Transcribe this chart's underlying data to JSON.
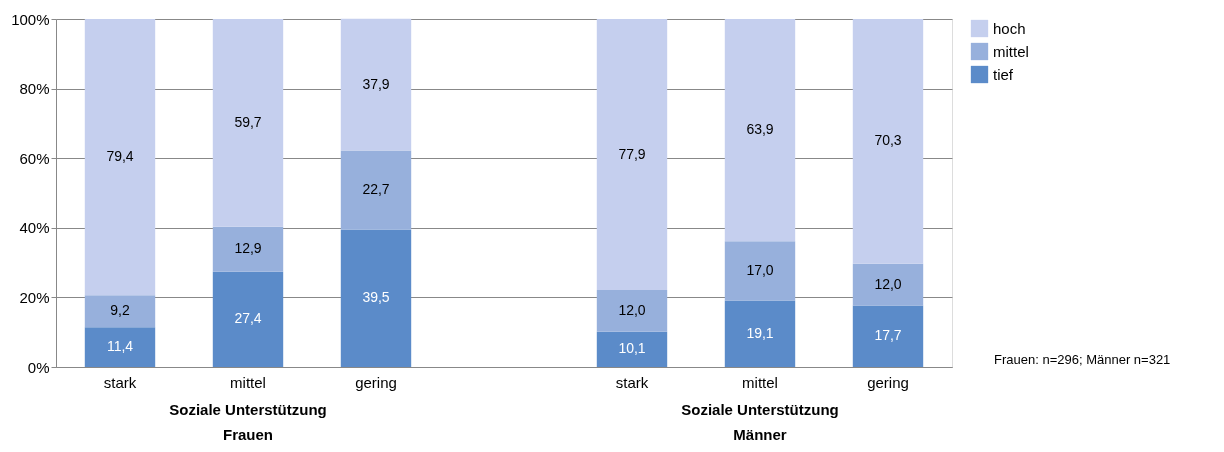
{
  "chart_data": {
    "type": "bar",
    "stacked": true,
    "categories": [
      "stark",
      "mittel",
      "gering",
      null,
      "stark",
      "mittel",
      "gering"
    ],
    "series": [
      {
        "name": "tief",
        "color": "#5b8bc9",
        "values": [
          11.4,
          27.4,
          39.5,
          null,
          10.1,
          19.1,
          17.7
        ],
        "value_labels": [
          "11,4",
          "27,4",
          "39,5",
          null,
          "10,1",
          "19,1",
          "17,7"
        ]
      },
      {
        "name": "mittel",
        "color": "#97b0dc",
        "values": [
          9.2,
          12.9,
          22.7,
          null,
          12.0,
          17.0,
          12.0
        ],
        "value_labels": [
          "9,2",
          "12,9",
          "22,7",
          null,
          "12,0",
          "17,0",
          "12,0"
        ]
      },
      {
        "name": "hoch",
        "color": "#c5cfee",
        "values": [
          79.4,
          59.7,
          37.9,
          null,
          77.9,
          63.9,
          70.3
        ],
        "value_labels": [
          "79,4",
          "59,7",
          "37,9",
          null,
          "77,9",
          "63,9",
          "70,3"
        ]
      }
    ],
    "ylim": [
      0,
      100
    ],
    "yticks": [
      {
        "value": 0,
        "label": "0%"
      },
      {
        "value": 20,
        "label": "20%"
      },
      {
        "value": 40,
        "label": "40%"
      },
      {
        "value": 60,
        "label": "60%"
      },
      {
        "value": 80,
        "label": "80%"
      },
      {
        "value": 100,
        "label": "100%"
      }
    ],
    "grid": "y",
    "legend": "top right",
    "annotations": [
      "Soziale Unterstützung\nFrauen",
      "Soziale Unterstützung\nMänner",
      "Frauen: n=296; Männer n=321"
    ]
  }
}
